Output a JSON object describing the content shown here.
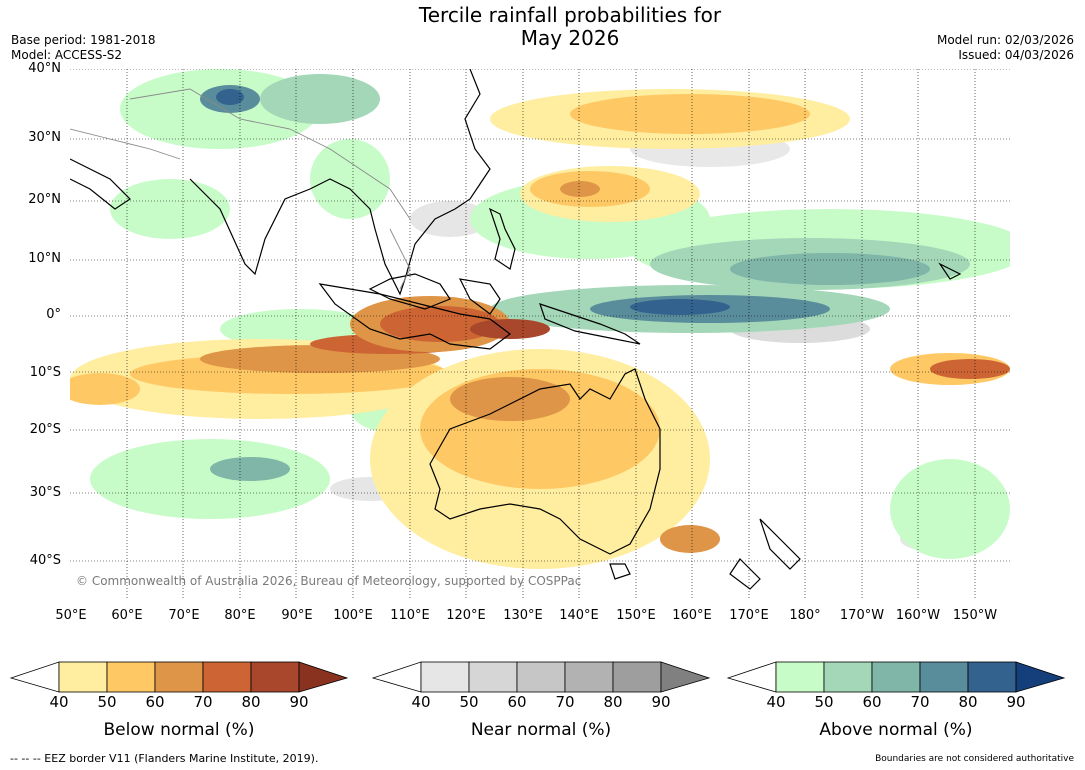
{
  "title_line1": "Tercile rainfall probabilities for",
  "title_line2": "May 2026",
  "base_period": "Base period: 1981-2018",
  "model": "Model: ACCESS-S2",
  "model_run": "Model run: 02/03/2026",
  "issued": "Issued: 04/03/2026",
  "copyright": "© Commonwealth of Australia 2026, Bureau of Meteorology, supported by COSPPac",
  "lat_labels": [
    "40°N",
    "30°N",
    "20°N",
    "10°N",
    "0°",
    "10°S",
    "20°S",
    "30°S",
    "40°S"
  ],
  "lon_labels": [
    "50°E",
    "60°E",
    "70°E",
    "80°E",
    "90°E",
    "100°E",
    "110°E",
    "120°E",
    "130°E",
    "140°E",
    "150°E",
    "160°E",
    "170°E",
    "180°",
    "170°W",
    "160°W",
    "150°W"
  ],
  "colorbars": [
    {
      "label": "Below normal (%)",
      "ticks": [
        "40",
        "50",
        "60",
        "70",
        "80",
        "90"
      ],
      "colors": [
        "#ffeda0",
        "#fec965",
        "#df9547",
        "#cc6533",
        "#a8472b",
        "#8a3220"
      ]
    },
    {
      "label": "Near normal (%)",
      "ticks": [
        "40",
        "50",
        "60",
        "70",
        "80",
        "90"
      ],
      "colors": [
        "#e6e6e6",
        "#d6d6d6",
        "#c6c6c6",
        "#b2b2b2",
        "#9e9e9e",
        "#808080"
      ]
    },
    {
      "label": "Above normal (%)",
      "ticks": [
        "40",
        "50",
        "60",
        "70",
        "80",
        "90"
      ],
      "colors": [
        "#c7fcc9",
        "#a3d7b8",
        "#80b6a8",
        "#5a8d9b",
        "#34628f",
        "#143f7a"
      ]
    }
  ],
  "footer_left": "--  --  -- EEZ border V11 (Flanders Marine Institute, 2019).",
  "footer_right": "Boundaries are not considered authoritative"
}
